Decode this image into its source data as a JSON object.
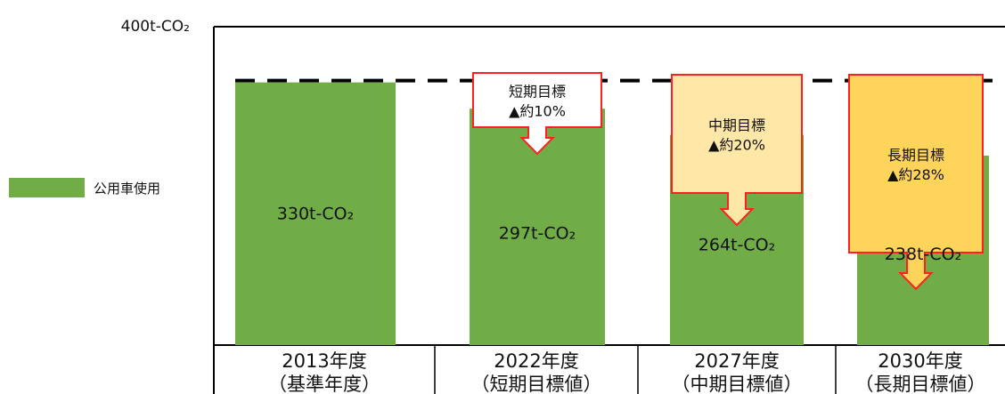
{
  "chart_data": {
    "type": "bar",
    "ylim": [
      0,
      400
    ],
    "y_top_label": "400t-CO₂",
    "baseline_dashed": true,
    "legend": [
      {
        "label": "公用車使用",
        "color": "#70ad47"
      }
    ],
    "categories": [
      {
        "line1": "2013年度",
        "line2": "（基準年度）"
      },
      {
        "line1": "2022年度",
        "line2": "（短期目標値）"
      },
      {
        "line1": "2027年度",
        "line2": "（中期目標値）"
      },
      {
        "line1": "2030年度",
        "line2": "（長期目標値）"
      }
    ],
    "series": [
      {
        "values": [
          330,
          297,
          264,
          238
        ],
        "labels": [
          "330t-CO₂",
          "297t-CO₂",
          "264t-CO₂",
          "238t-CO₂"
        ],
        "color": "#70ad47"
      }
    ],
    "callouts": [
      null,
      {
        "line1": "短期目標",
        "line2": "▲約10%",
        "fill": "#ffffff"
      },
      {
        "line1": "中期目標",
        "line2": "▲約20%",
        "fill": "#ffe7a8"
      },
      {
        "line1": "長期目標",
        "line2": "▲約28%",
        "fill": "#ffd45a"
      }
    ],
    "callout_border_color": "#ff2020"
  }
}
